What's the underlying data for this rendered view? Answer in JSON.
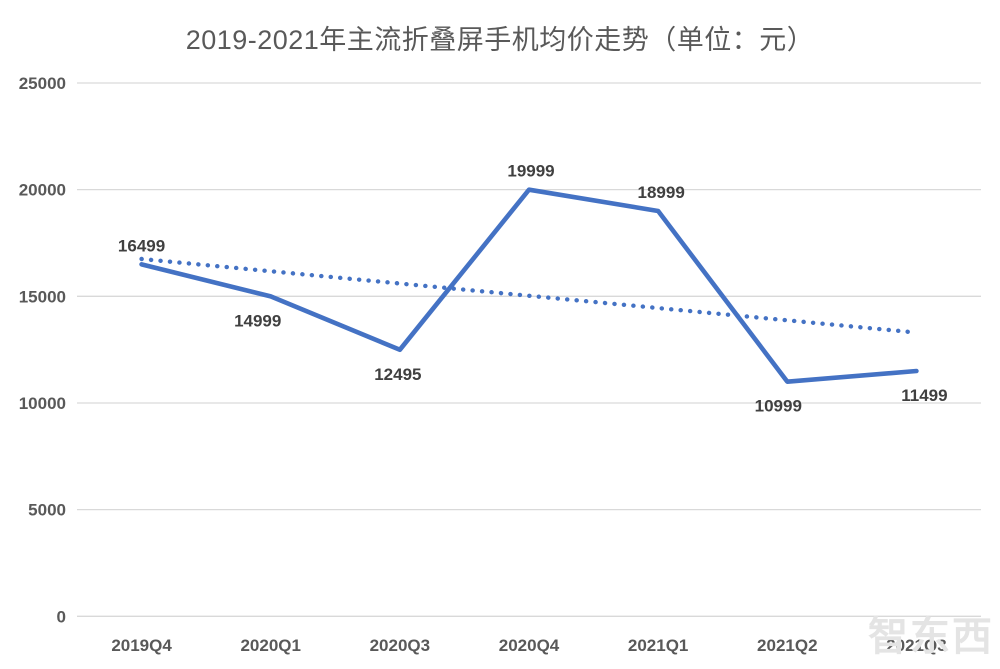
{
  "page": {
    "title": "2019-2021年主流折叠屏手机均价走势（单位：元）"
  },
  "watermark": {
    "logo_text": "智东西"
  },
  "colors": {
    "series_line": "#4472C4",
    "trend_line": "#4472C4",
    "gridline": "#D9D9D9",
    "axis_text": "#595959",
    "data_label_text": "#404040",
    "title_text": "#595959",
    "watermark_text": "#E4E4E4"
  },
  "chart_data": {
    "type": "line",
    "title": "2019-2021年主流折叠屏手机均价走势（单位：元）",
    "unit": "元",
    "categories": [
      "2019Q4",
      "2020Q1",
      "2020Q3",
      "2020Q4",
      "2021Q1",
      "2021Q2",
      "2021Q3"
    ],
    "series": [
      {
        "name": "主流折叠屏手机均价",
        "style": "solid",
        "color": "#4472C4",
        "values": [
          16499,
          14999,
          12495,
          19999,
          18999,
          10999,
          11499
        ],
        "data_labels": [
          16499,
          14999,
          12495,
          19999,
          18999,
          10999,
          11499
        ],
        "label_positions": [
          "above",
          "below",
          "below",
          "above",
          "above",
          "below",
          "below"
        ]
      }
    ],
    "trendline": {
      "style": "dotted",
      "color": "#4472C4",
      "start_value": 16750,
      "end_value": 13300
    },
    "y_axis": {
      "min": 0,
      "max": 25000,
      "ticks": [
        0,
        5000,
        10000,
        15000,
        20000,
        25000
      ],
      "grid": true
    },
    "x_axis": {
      "grid": false
    },
    "legend": "none"
  }
}
